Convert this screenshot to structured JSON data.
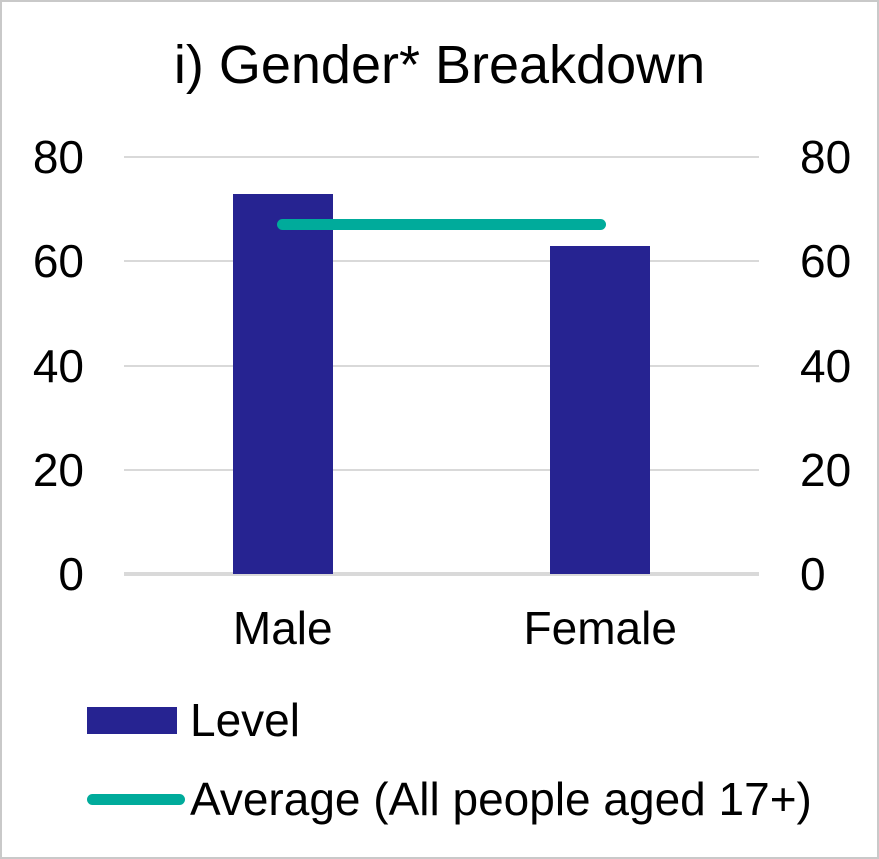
{
  "chart_data": {
    "type": "bar",
    "title": "i) Gender* Breakdown",
    "categories": [
      "Male",
      "Female"
    ],
    "series": [
      {
        "name": "Level",
        "type": "bar",
        "values": [
          73,
          63
        ],
        "color": "#262391"
      },
      {
        "name": "Average (All people aged 17+)",
        "type": "line",
        "values": [
          67,
          67
        ],
        "color": "#00ab9b"
      }
    ],
    "ylim": [
      0,
      80
    ],
    "yticks": [
      0,
      20,
      40,
      60,
      80
    ],
    "dual_y_axis": true,
    "grid": true,
    "legend_position": "bottom-left",
    "xlabel": "",
    "ylabel": ""
  },
  "colors": {
    "bar": "#262391",
    "line": "#00ab9b",
    "gridline": "#d9d9d9",
    "text": "#000000",
    "frame_border": "#c9c9c9",
    "background": "#ffffff"
  }
}
